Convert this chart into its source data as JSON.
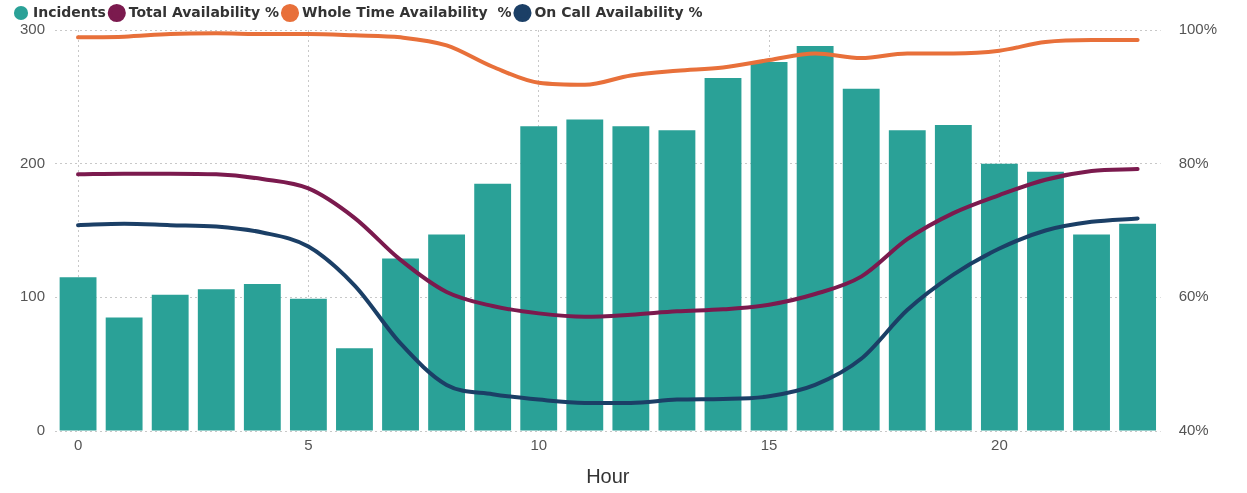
{
  "chart_data": {
    "type": "bar",
    "xlabel": "Hour",
    "categories": [
      "0",
      null,
      null,
      null,
      null,
      "5",
      null,
      null,
      null,
      null,
      "10",
      null,
      null,
      null,
      null,
      "15",
      null,
      null,
      null,
      null,
      "20",
      null,
      null,
      null
    ],
    "series": [
      {
        "name": "Incidents",
        "color": "#2aa197",
        "values": [
          115,
          85,
          102,
          106,
          110,
          99,
          62,
          129,
          147,
          185,
          228,
          233,
          228,
          225,
          264,
          276,
          288,
          256,
          225,
          229,
          200,
          194,
          147,
          155
        ]
      },
      {
        "name": "Total Availability %",
        "type": "line",
        "axis": "y2",
        "color": "#7b1a4e",
        "values": [
          78.4,
          78.5,
          78.5,
          78.4,
          77.7,
          76.3,
          71.9,
          65.6,
          60.8,
          58.7,
          57.6,
          57.1,
          57.4,
          57.9,
          58.2,
          58.9,
          60.5,
          63.1,
          68.7,
          72.6,
          75.3,
          77.6,
          78.9,
          79.2
        ]
      },
      {
        "name": "Whole Time Availability  %",
        "type": "line",
        "axis": "y2",
        "color": "#e8703a",
        "values": [
          98.9,
          99,
          99.4,
          99.5,
          99.4,
          99.4,
          99.2,
          98.9,
          97.7,
          94.5,
          92.1,
          91.8,
          93.2,
          93.9,
          94.4,
          95.5,
          96.5,
          95.8,
          96.5,
          96.5,
          96.9,
          98.2,
          98.5,
          98.5
        ]
      },
      {
        "name": "On Call Availability %",
        "type": "line",
        "axis": "y2",
        "color": "#1b3f66",
        "values": [
          70.8,
          71,
          70.8,
          70.6,
          69.7,
          67.6,
          61.8,
          53.1,
          46.9,
          45.5,
          44.7,
          44.2,
          44.2,
          44.7,
          44.8,
          45.2,
          46.9,
          50.8,
          58.1,
          63.4,
          67.3,
          70,
          71.3,
          71.8
        ]
      }
    ],
    "ylim": [
      0,
      300
    ],
    "yticks": [
      0,
      100,
      200,
      300
    ],
    "y2lim": [
      40,
      100
    ],
    "y2ticks": [
      {
        "value": 40,
        "label": "40%"
      },
      {
        "value": 60,
        "label": "60%"
      },
      {
        "value": 80,
        "label": "80%"
      },
      {
        "value": 100,
        "label": "100%"
      }
    ],
    "grid": true,
    "legend": "top left",
    "marker": "none",
    "line_style": "solid"
  }
}
